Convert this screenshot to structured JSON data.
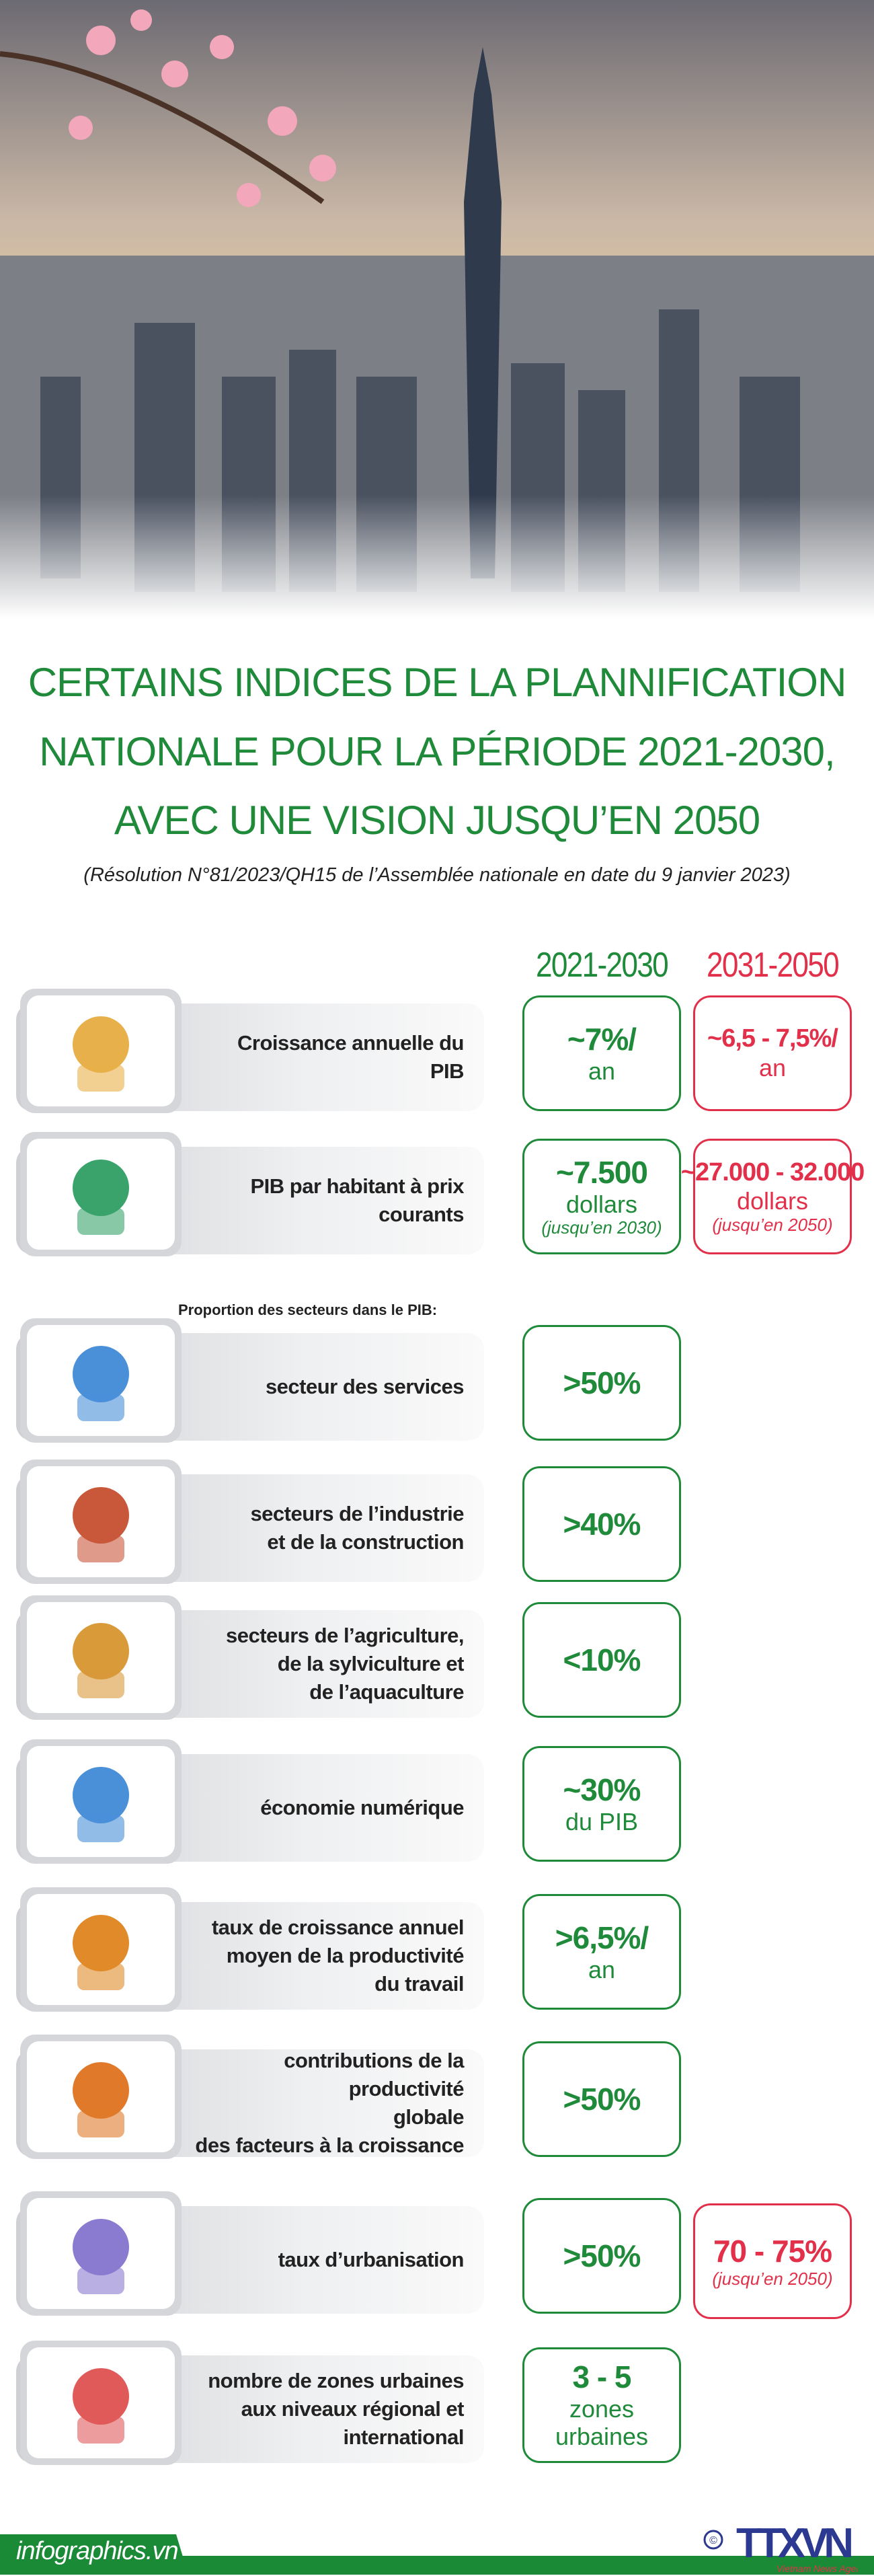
{
  "header": {
    "title_lines": [
      "CERTAINS INDICES DE LA PLANNIFICATION",
      "NATIONALE POUR LA PÉRIODE 2021-2030,",
      "AVEC UNE VISION JUSQU’EN 2050"
    ],
    "subtitle": "(Résolution N°81/2023/QH15 de l’Assemblée nationale en date du 9 janvier 2023)"
  },
  "columns": [
    "2021-2030",
    "2031-2050"
  ],
  "colors": {
    "green": "#1f8a3a",
    "red": "#e2304a"
  },
  "proportion_label": "Proportion des secteurs dans le PIB:",
  "rows": [
    {
      "icon": "coin-growth-icon",
      "label": [
        "Croissance annuelle du",
        "PIB"
      ],
      "v1": {
        "big": "~7%/",
        "sub": "an"
      },
      "v2": {
        "big": "~6,5 - 7,5%/",
        "sub": "an"
      }
    },
    {
      "icon": "money-bag-hand-icon",
      "label": [
        "PIB par habitant à prix",
        "courants"
      ],
      "v1": {
        "big": "~7.500",
        "sub": "dollars",
        "note": "(jusqu’en 2030)"
      },
      "v2": {
        "big": "~27.000 - 32.000",
        "sub": "dollars",
        "note": "(jusqu’en 2050)"
      }
    },
    {
      "icon": "customer-service-icon",
      "label": [
        "secteur des services"
      ],
      "v1": {
        "big": ">50%"
      }
    },
    {
      "icon": "construction-worker-icon",
      "label": [
        "secteurs de l’industrie",
        "et de la construction"
      ],
      "v1": {
        "big": ">40%"
      }
    },
    {
      "icon": "agriculture-fish-icon",
      "label": [
        "secteurs de l’agriculture,",
        "de la sylviculture et",
        "de l’aquaculture"
      ],
      "v1": {
        "big": "<10%"
      }
    },
    {
      "icon": "digital-tablet-chart-icon",
      "label": [
        "économie numérique"
      ],
      "v1": {
        "big": "~30%",
        "sub": "du PIB"
      }
    },
    {
      "icon": "worker-wheelbarrow-icon",
      "label": [
        "taux de croissance annuel",
        "moyen de la productivité",
        "du travail"
      ],
      "v1": {
        "big": ">6,5%/",
        "sub": "an"
      }
    },
    {
      "icon": "engineer-icon",
      "label": [
        "contributions de la productivité",
        "globale",
        "des facteurs à la croissance"
      ],
      "v1": {
        "big": ">50%"
      }
    },
    {
      "icon": "city-map-icon",
      "label": [
        "taux d’urbanisation"
      ],
      "v1": {
        "big": ">50%"
      },
      "v2": {
        "big": "70 - 75%",
        "note": "(jusqu’en 2050)"
      }
    },
    {
      "icon": "skyscrapers-icon",
      "label": [
        "nombre de zones urbaines",
        "aux niveaux régional et",
        "international"
      ],
      "v1": {
        "big": "3 - 5",
        "sub": "zones urbaines"
      }
    }
  ],
  "footer": {
    "site": "infographics.vn",
    "logo": "TTXVN",
    "logo_sub": "Vietnam News Agency",
    "copyright": "©"
  }
}
